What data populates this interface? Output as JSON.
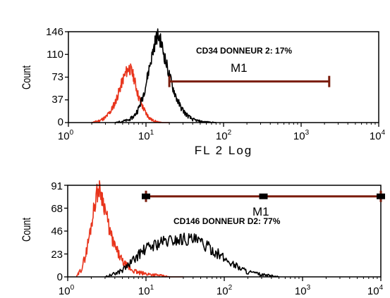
{
  "chart_data": [
    {
      "type": "area",
      "x_scale": "log",
      "xlim": [
        1,
        10000
      ],
      "ylim": [
        0,
        146
      ],
      "yticks": [
        "146",
        "110",
        "73",
        "37",
        "0"
      ],
      "xtick_exponents": [
        "0",
        "1",
        "2",
        "3",
        "4"
      ],
      "xtick_base": "10",
      "ylabel": "Count",
      "xlabel": "FL 2 Log",
      "annotation": "CD34 DONNEUR 2: 17%",
      "marker": {
        "label": "M1",
        "x_start": 20,
        "x_end": 2300,
        "y": 66
      },
      "series": [
        {
          "color": "#e8341c",
          "x": [
            2,
            2.5,
            3,
            3.5,
            4,
            4.5,
            5,
            5.5,
            6,
            6.5,
            7,
            7.5,
            8,
            9,
            10,
            11,
            12,
            14,
            16,
            20
          ],
          "y": [
            0,
            3,
            8,
            18,
            32,
            50,
            68,
            80,
            88,
            83,
            72,
            56,
            42,
            26,
            15,
            8,
            4,
            1,
            0,
            0
          ]
        },
        {
          "color": "#000000",
          "x": [
            4,
            6,
            7,
            8,
            9,
            10,
            11,
            12,
            13,
            14,
            15,
            16,
            18,
            20,
            22,
            25,
            28,
            32,
            36,
            40,
            50,
            60,
            80
          ],
          "y": [
            0,
            4,
            10,
            22,
            40,
            62,
            88,
            108,
            128,
            140,
            136,
            124,
            98,
            76,
            58,
            38,
            25,
            15,
            9,
            5,
            2,
            1,
            0
          ]
        }
      ]
    },
    {
      "type": "area",
      "x_scale": "log",
      "xlim": [
        1,
        10000
      ],
      "ylim": [
        0,
        91
      ],
      "yticks": [
        "91",
        "68",
        "46",
        "23",
        "0"
      ],
      "xtick_exponents": [
        "0",
        "1",
        "2",
        "3",
        "4"
      ],
      "xtick_base": "10",
      "ylabel": "Count",
      "annotation": "CD146 DONNEUR D2: 77%",
      "marker": {
        "label": "M1",
        "x_start": 10,
        "x_end": 10000,
        "y": 80
      },
      "series": [
        {
          "color": "#e8341c",
          "x": [
            1.3,
            1.5,
            1.7,
            1.9,
            2.1,
            2.3,
            2.5,
            2.7,
            3,
            3.3,
            3.6,
            4,
            4.5,
            5,
            6,
            7,
            8,
            10,
            13,
            16,
            20,
            30
          ],
          "y": [
            0,
            8,
            22,
            42,
            62,
            80,
            88,
            82,
            68,
            52,
            40,
            30,
            22,
            15,
            9,
            6,
            4,
            3,
            2,
            1,
            0,
            0
          ]
        },
        {
          "color": "#000000",
          "x": [
            3,
            4,
            5,
            6,
            7,
            8,
            10,
            12,
            15,
            20,
            25,
            30,
            40,
            50,
            60,
            80,
            100,
            150,
            200,
            300,
            400,
            500
          ],
          "y": [
            0,
            3,
            7,
            12,
            17,
            22,
            28,
            31,
            34,
            36,
            37,
            38,
            37,
            34,
            30,
            24,
            18,
            10,
            5,
            2,
            1,
            0
          ]
        }
      ]
    }
  ]
}
